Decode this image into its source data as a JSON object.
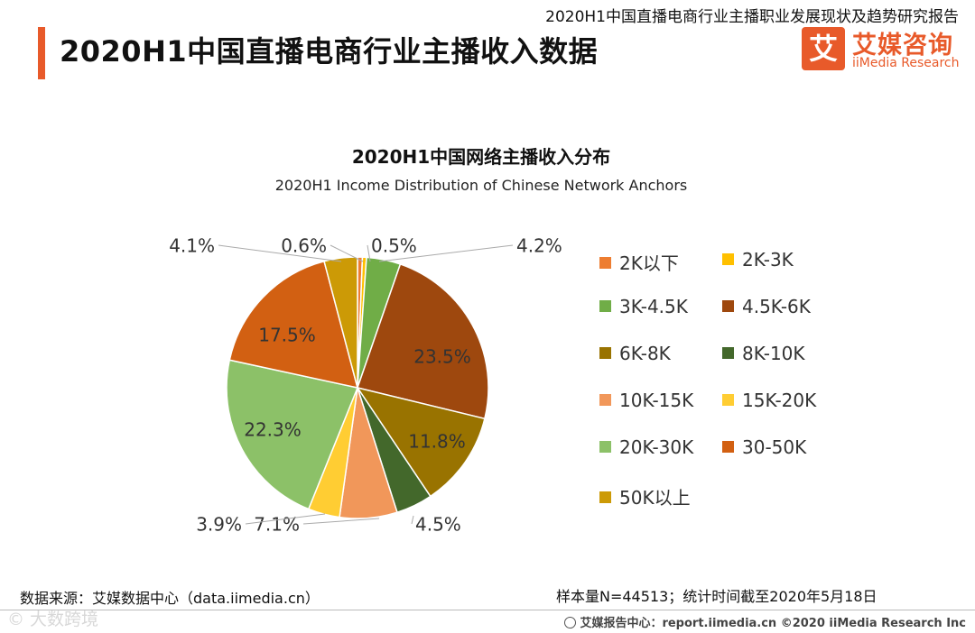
{
  "header": {
    "report_name": "2020H1中国直播电商行业主播职业发展现状及趋势研究报告",
    "title": "2020H1中国直播电商行业主播收入数据",
    "logo_mark": "艾",
    "logo_cn": "艾媒咨询",
    "logo_en": "iiMedia Research"
  },
  "colors": {
    "accent": "#e85a2a"
  },
  "chart_data": {
    "type": "pie",
    "title": "2020H1中国网络主播收入分布",
    "subtitle": "2020H1 Income Distribution of Chinese Network Anchors",
    "legend_position": "right",
    "slices": [
      {
        "label": "2K以下",
        "value": 0.6,
        "display": "0.6%",
        "color": "#ED7D31"
      },
      {
        "label": "2K-3K",
        "value": 0.5,
        "display": "0.5%",
        "color": "#FFC000"
      },
      {
        "label": "3K-4.5K",
        "value": 4.2,
        "display": "4.2%",
        "color": "#70AD47"
      },
      {
        "label": "4.5K-6K",
        "value": 23.5,
        "display": "23.5%",
        "color": "#9E480E"
      },
      {
        "label": "6K-8K",
        "value": 11.8,
        "display": "11.8%",
        "color": "#997300"
      },
      {
        "label": "8K-10K",
        "value": 4.5,
        "display": "4.5%",
        "color": "#43682B"
      },
      {
        "label": "10K-15K",
        "value": 7.1,
        "display": "7.1%",
        "color": "#F1975A"
      },
      {
        "label": "15K-20K",
        "value": 3.9,
        "display": "3.9%",
        "color": "#FFCD33"
      },
      {
        "label": "20K-30K",
        "value": 22.3,
        "display": "22.3%",
        "color": "#8CC168"
      },
      {
        "label": "30-50K",
        "value": 17.5,
        "display": "17.5%",
        "color": "#D26012"
      },
      {
        "label": "50K以上",
        "value": 4.1,
        "display": "4.1%",
        "color": "#CC9A06"
      }
    ]
  },
  "footer": {
    "source": "数据来源：艾媒数据中心（data.iimedia.cn）",
    "sample": "样本量N=44513；统计时间截至2020年5月18日",
    "copyright": "艾媒报告中心：report.iimedia.cn   ©2020  iiMedia Research  Inc",
    "watermark": "© 大数跨境"
  }
}
